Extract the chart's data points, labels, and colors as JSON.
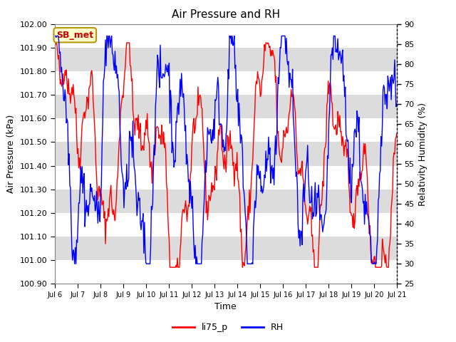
{
  "title": "Air Pressure and RH",
  "xlabel": "Time",
  "ylabel_left": "Air Pressure (kPa)",
  "ylabel_right": "Relativity Humidity (%)",
  "legend_label1": "li75_p",
  "legend_label2": "RH",
  "annotation": "SB_met",
  "ylim_left": [
    100.9,
    102.0
  ],
  "ylim_right": [
    25,
    90
  ],
  "yticks_left": [
    100.9,
    101.0,
    101.1,
    101.2,
    101.3,
    101.4,
    101.5,
    101.6,
    101.7,
    101.8,
    101.9,
    102.0
  ],
  "yticks_right": [
    25,
    30,
    35,
    40,
    45,
    50,
    55,
    60,
    65,
    70,
    75,
    80,
    85,
    90
  ],
  "xtick_labels": [
    "Jul 6",
    "Jul 7",
    "Jul 8",
    "Jul 9",
    "Jul 10",
    "Jul 11",
    "Jul 12",
    "Jul 13",
    "Jul 14",
    "Jul 15",
    "Jul 16",
    "Jul 17",
    "Jul 18",
    "Jul 19",
    "Jul 20",
    "Jul 21"
  ],
  "color_red": "#FF0000",
  "color_blue": "#0000FF",
  "band_light": "#DCDCDC",
  "band_dark": "#C8C8C8",
  "grid_color": "#FFFFFF",
  "annotation_bg": "#FFFFCC",
  "annotation_border": "#B8960C",
  "annotation_text": "#CC0000"
}
